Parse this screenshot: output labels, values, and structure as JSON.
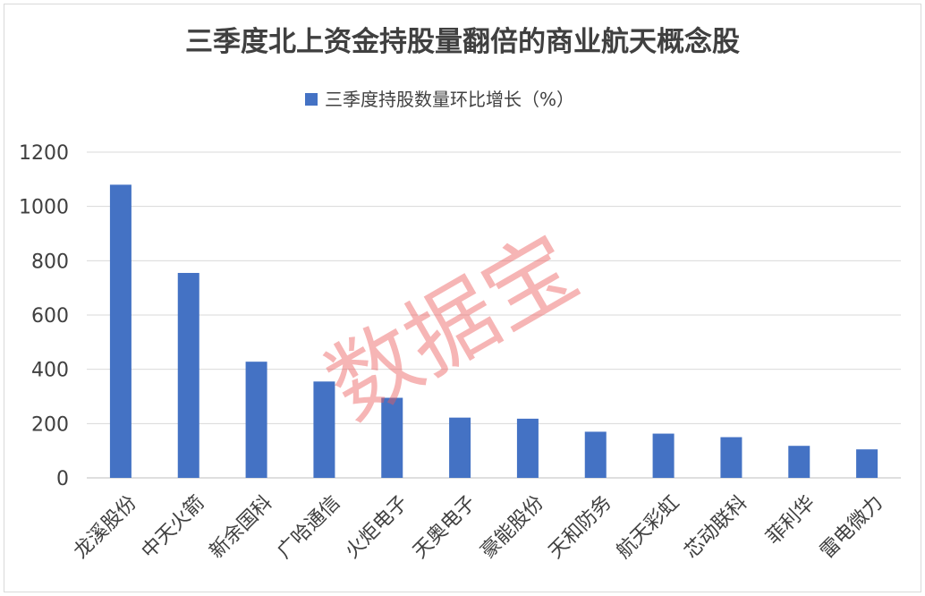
{
  "chart_data": {
    "type": "bar",
    "title": "三季度北上资金持股量翻倍的商业航天概念股",
    "categories": [
      "龙溪股份",
      "中天火箭",
      "新余国科",
      "广哈通信",
      "火炬电子",
      "天奥电子",
      "豪能股份",
      "天和防务",
      "航天彩虹",
      "芯动联科",
      "菲利华",
      "雷电微力"
    ],
    "series": [
      {
        "name": "三季度持股数量环比增长（%）",
        "values": [
          1080,
          755,
          428,
          355,
          295,
          222,
          218,
          170,
          163,
          150,
          118,
          105
        ]
      }
    ],
    "ylim": [
      0,
      1200
    ],
    "yticks": [
      0,
      200,
      400,
      600,
      800,
      1000,
      1200
    ],
    "grid": true,
    "legend_position": "top-center",
    "bar_color": "#4472c4"
  },
  "watermark": "数据宝"
}
